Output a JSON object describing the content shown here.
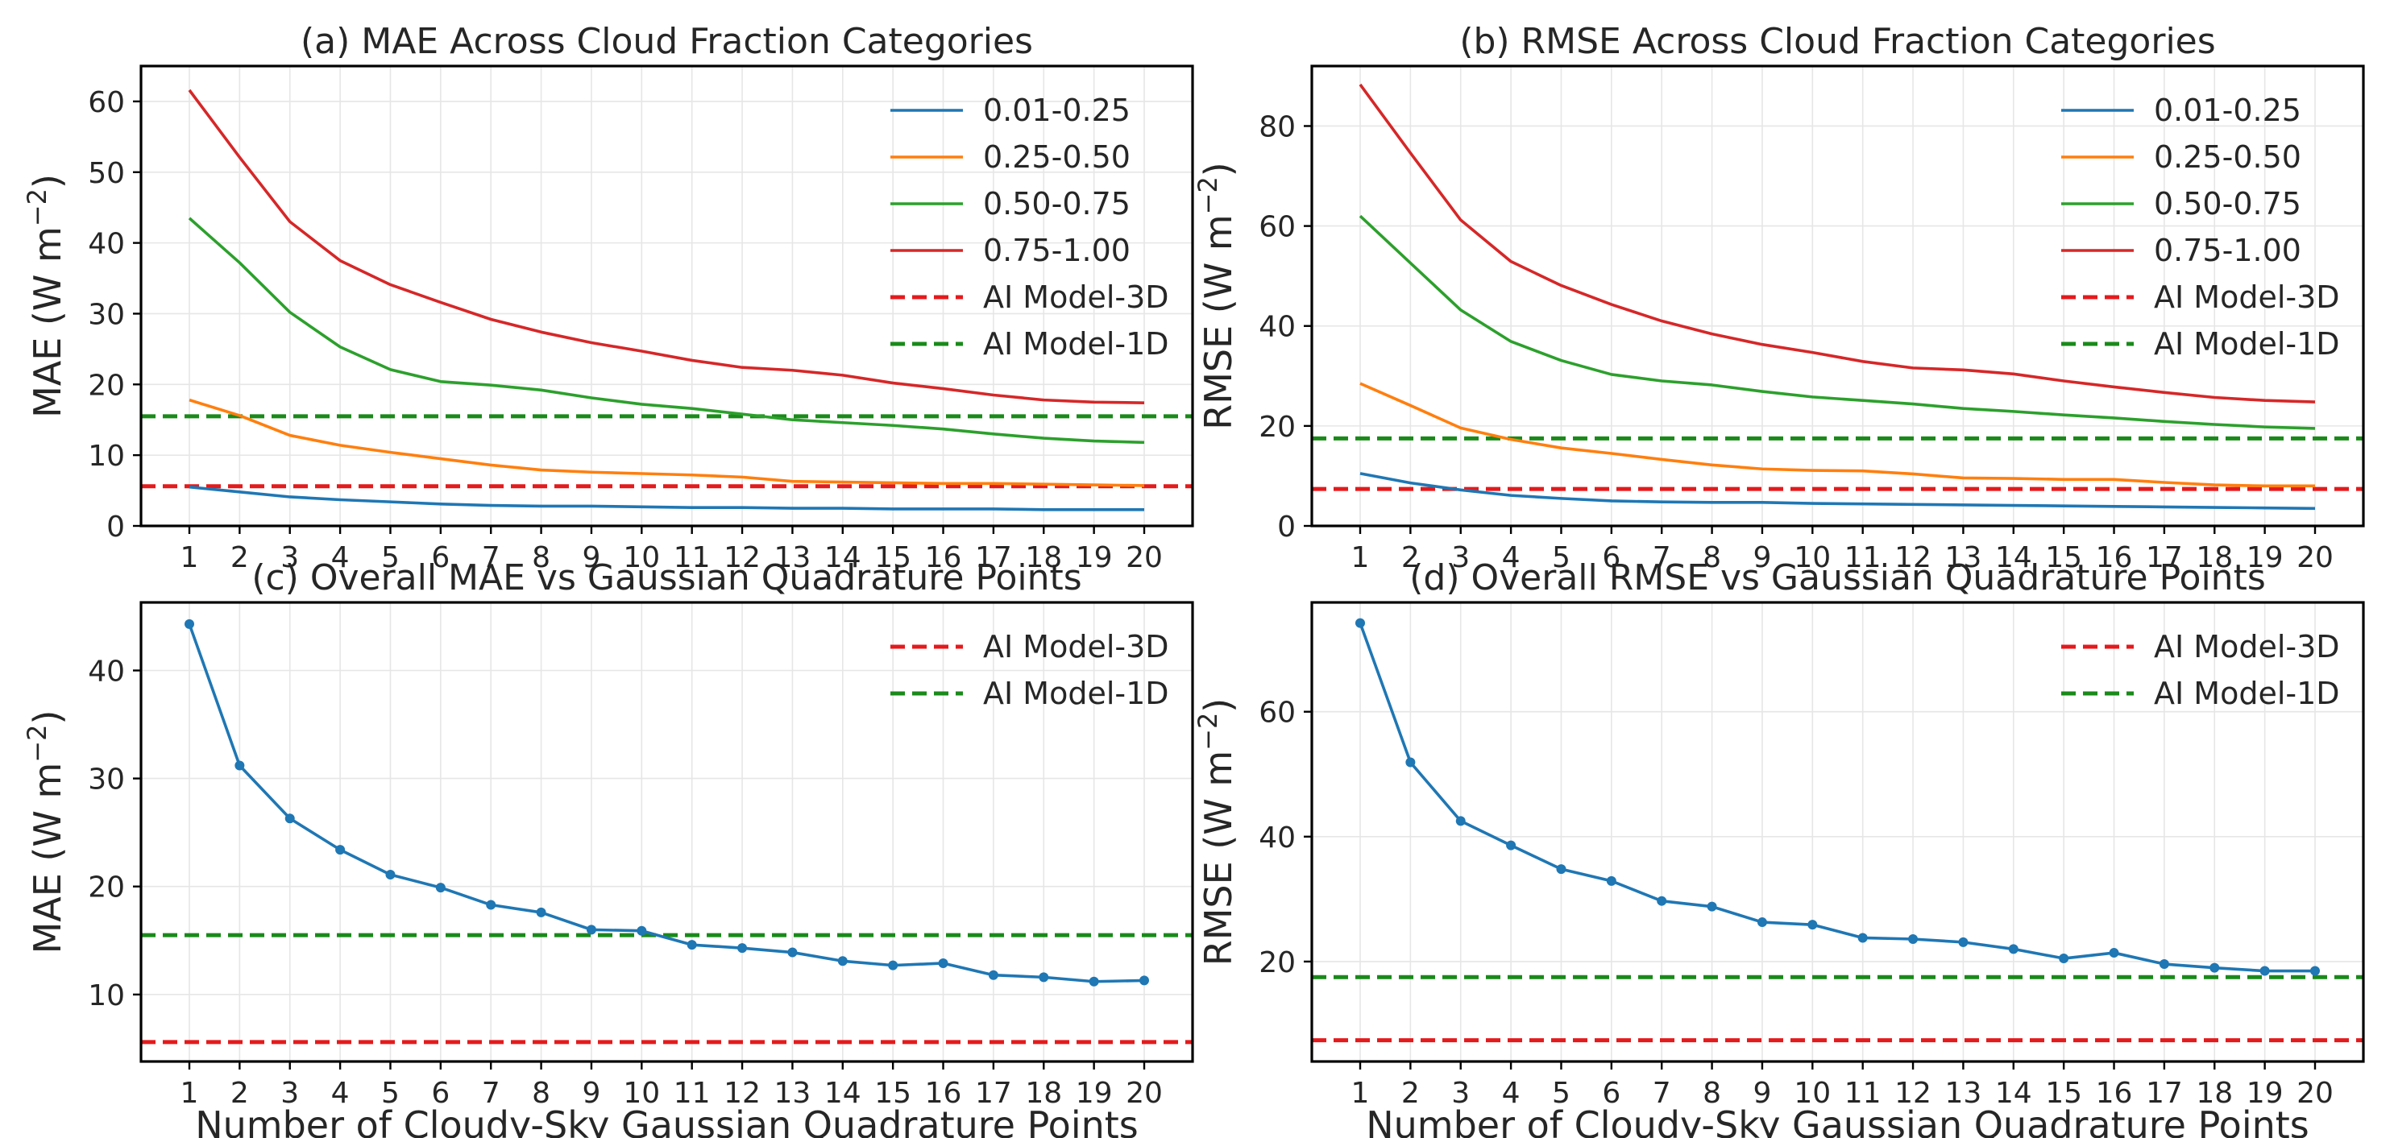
{
  "figure": {
    "xlabel": "Number of Cloudy-Sky Gaussian Quadrature Points"
  },
  "colors": {
    "0.01-0.25": "#1f77b4",
    "0.25-0.50": "#ff7f0e",
    "0.50-0.75": "#2ca02c",
    "0.75-1.00": "#d62728",
    "ai3d": "#e41a1c",
    "ai1d": "#1a8a1a"
  },
  "chart_data": [
    {
      "id": "a",
      "type": "line",
      "title": "(a) MAE Across Cloud Fraction Categories",
      "xlabel": "",
      "ylabel": "MAE (W m",
      "ylabel_sup": "−2",
      "ylabel_end": ")",
      "x": [
        1,
        2,
        3,
        4,
        5,
        6,
        7,
        8,
        9,
        10,
        11,
        12,
        13,
        14,
        15,
        16,
        17,
        18,
        19,
        20
      ],
      "ylim": [
        0,
        65
      ],
      "yticks": [
        0,
        10,
        20,
        30,
        40,
        50,
        60
      ],
      "grid": true,
      "legend": "top-right",
      "series": [
        {
          "name": "0.01-0.25",
          "values": [
            5.5,
            4.8,
            4.1,
            3.7,
            3.4,
            3.1,
            2.9,
            2.8,
            2.8,
            2.7,
            2.6,
            2.6,
            2.5,
            2.5,
            2.4,
            2.4,
            2.4,
            2.3,
            2.3,
            2.3
          ]
        },
        {
          "name": "0.25-0.50",
          "values": [
            17.8,
            15.6,
            12.8,
            11.4,
            10.4,
            9.5,
            8.6,
            7.9,
            7.6,
            7.4,
            7.2,
            6.9,
            6.3,
            6.2,
            6.1,
            6.0,
            6.0,
            5.9,
            5.8,
            5.7
          ]
        },
        {
          "name": "0.50-0.75",
          "values": [
            43.5,
            37.2,
            30.2,
            25.3,
            22.1,
            20.4,
            19.9,
            19.2,
            18.1,
            17.2,
            16.6,
            15.8,
            15.0,
            14.6,
            14.2,
            13.7,
            13.0,
            12.4,
            12.0,
            11.8
          ]
        },
        {
          "name": "0.75-1.00",
          "values": [
            61.6,
            52.1,
            43.0,
            37.5,
            34.1,
            31.6,
            29.2,
            27.4,
            25.9,
            24.7,
            23.4,
            22.4,
            22.0,
            21.3,
            20.2,
            19.4,
            18.5,
            17.8,
            17.5,
            17.4
          ]
        }
      ],
      "hlines": [
        {
          "name": "AI Model-3D",
          "y": 5.6,
          "color_key": "ai3d"
        },
        {
          "name": "AI Model-1D",
          "y": 15.5,
          "color_key": "ai1d"
        }
      ]
    },
    {
      "id": "b",
      "type": "line",
      "title": "(b) RMSE Across Cloud Fraction Categories",
      "xlabel": "",
      "ylabel": "RMSE (W m",
      "ylabel_sup": "−2",
      "ylabel_end": ")",
      "x": [
        1,
        2,
        3,
        4,
        5,
        6,
        7,
        8,
        9,
        10,
        11,
        12,
        13,
        14,
        15,
        16,
        17,
        18,
        19,
        20
      ],
      "ylim": [
        0,
        92
      ],
      "yticks": [
        0,
        20,
        40,
        60,
        80
      ],
      "grid": true,
      "legend": "top-right",
      "series": [
        {
          "name": "0.01-0.25",
          "values": [
            10.5,
            8.6,
            7.2,
            6.1,
            5.5,
            5.0,
            4.8,
            4.7,
            4.7,
            4.5,
            4.4,
            4.3,
            4.2,
            4.1,
            4.0,
            3.9,
            3.8,
            3.7,
            3.6,
            3.5
          ]
        },
        {
          "name": "0.25-0.50",
          "values": [
            28.5,
            24.1,
            19.6,
            17.3,
            15.6,
            14.5,
            13.3,
            12.2,
            11.4,
            11.1,
            11.0,
            10.4,
            9.6,
            9.5,
            9.3,
            9.3,
            8.7,
            8.2,
            8.0,
            8.0
          ]
        },
        {
          "name": "0.50-0.75",
          "values": [
            62.0,
            52.6,
            43.2,
            36.9,
            33.1,
            30.3,
            29.0,
            28.2,
            26.9,
            25.8,
            25.1,
            24.4,
            23.5,
            22.9,
            22.2,
            21.6,
            20.9,
            20.3,
            19.8,
            19.5
          ]
        },
        {
          "name": "0.75-1.00",
          "values": [
            88.3,
            74.6,
            61.2,
            52.9,
            48.1,
            44.3,
            41.0,
            38.4,
            36.3,
            34.7,
            32.9,
            31.6,
            31.2,
            30.4,
            29.0,
            27.8,
            26.7,
            25.7,
            25.1,
            24.8
          ]
        }
      ],
      "hlines": [
        {
          "name": "AI Model-3D",
          "y": 7.4,
          "color_key": "ai3d"
        },
        {
          "name": "AI Model-1D",
          "y": 17.5,
          "color_key": "ai1d"
        }
      ]
    },
    {
      "id": "c",
      "type": "line",
      "title": "(c) Overall MAE vs Gaussian Quadrature Points",
      "xlabel": "Number of Cloudy-Sky Gaussian Quadrature Points",
      "ylabel": "MAE (W m",
      "ylabel_sup": "−2",
      "ylabel_end": ")",
      "x": [
        1,
        2,
        3,
        4,
        5,
        6,
        7,
        8,
        9,
        10,
        11,
        12,
        13,
        14,
        15,
        16,
        17,
        18,
        19,
        20
      ],
      "ylim": [
        3.8,
        46.3
      ],
      "yticks": [
        10,
        20,
        30,
        40
      ],
      "grid": true,
      "legend": "top-right",
      "series": [
        {
          "name": "",
          "color": "#1f77b4",
          "markers": true,
          "values": [
            44.3,
            31.2,
            26.3,
            23.4,
            21.1,
            19.9,
            18.3,
            17.6,
            16.0,
            15.9,
            14.6,
            14.3,
            13.9,
            13.1,
            12.7,
            12.9,
            11.8,
            11.6,
            11.2,
            11.3
          ]
        }
      ],
      "hlines": [
        {
          "name": "AI Model-3D",
          "y": 5.6,
          "color_key": "ai3d"
        },
        {
          "name": "AI Model-1D",
          "y": 15.5,
          "color_key": "ai1d"
        }
      ]
    },
    {
      "id": "d",
      "type": "line",
      "title": "(d) Overall RMSE vs Gaussian Quadrature Points",
      "xlabel": "Number of Cloudy-Sky Gaussian Quadrature Points",
      "ylabel": "RMSE (W m",
      "ylabel_sup": "−2",
      "ylabel_end": ")",
      "x": [
        1,
        2,
        3,
        4,
        5,
        6,
        7,
        8,
        9,
        10,
        11,
        12,
        13,
        14,
        15,
        16,
        17,
        18,
        19,
        20
      ],
      "ylim": [
        4.0,
        77.5
      ],
      "yticks": [
        20,
        40,
        60
      ],
      "grid": true,
      "legend": "top-right",
      "series": [
        {
          "name": "",
          "color": "#1f77b4",
          "markers": true,
          "values": [
            74.2,
            51.9,
            42.5,
            38.6,
            34.8,
            32.9,
            29.7,
            28.8,
            26.3,
            25.9,
            23.8,
            23.6,
            23.1,
            22.0,
            20.5,
            21.4,
            19.6,
            19.0,
            18.5,
            18.5
          ]
        }
      ],
      "hlines": [
        {
          "name": "AI Model-3D",
          "y": 7.4,
          "color_key": "ai3d"
        },
        {
          "name": "AI Model-1D",
          "y": 17.5,
          "color_key": "ai1d"
        }
      ]
    }
  ]
}
